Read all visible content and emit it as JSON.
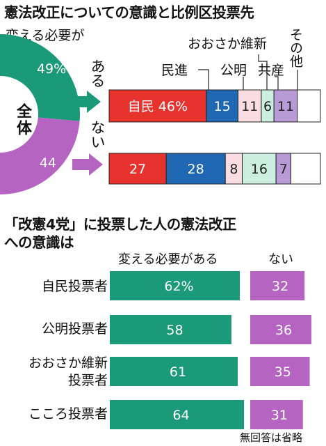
{
  "colors": {
    "green": "#1a9a78",
    "purple": "#b565c1",
    "ldp": "#e8322e",
    "cdp": "#1f66b3",
    "komeito": "#fadce3",
    "ishin": "#cbeee0",
    "kyosan": "#fbe6ea",
    "kyosan_bar": "#e9b8cc",
    "sdp": "#b89ad6",
    "other": "#ffffff"
  },
  "top": {
    "title": "憲法改正についての意識と比例区投票先",
    "need_change_label": "変える必要が",
    "aru": "ある",
    "nai": "ない",
    "all_label": "全体"
  },
  "chart_data": [
    {
      "type": "pie",
      "title": "全体",
      "slices": [
        {
          "label": "変える必要がある",
          "value": 49,
          "display": "49%",
          "color": "#1a9a78"
        },
        {
          "label": "変える必要がない",
          "value": 44,
          "display": "44",
          "color": "#b565c1"
        }
      ]
    },
    {
      "type": "bar",
      "stacked": true,
      "orientation": "horizontal",
      "categories": [
        "ある",
        "ない"
      ],
      "series": [
        {
          "name": "自民",
          "color": "#e8322e",
          "values": [
            46,
            27
          ],
          "labels": [
            "自民 46%",
            "27"
          ]
        },
        {
          "name": "民進",
          "color": "#1f66b3",
          "values": [
            15,
            28
          ],
          "labels": [
            "15",
            "28"
          ]
        },
        {
          "name": "公明",
          "color": "#fadce3",
          "values": [
            11,
            8
          ],
          "labels": [
            "11",
            "8"
          ]
        },
        {
          "name": "おおさか維新",
          "color": "#cbeee0",
          "values": [
            6,
            16
          ],
          "labels": [
            "6",
            "16"
          ]
        },
        {
          "name": "共産",
          "color": "#b89ad6",
          "values": [
            11,
            7
          ],
          "labels": [
            "11",
            "7"
          ]
        },
        {
          "name": "その他",
          "color": "#ffffff",
          "values": [
            11,
            14
          ],
          "labels": [
            "",
            ""
          ]
        }
      ],
      "legend_labels": {
        "minshin": "民進",
        "komei": "公明",
        "ishin": "おおさか維新",
        "kyosan": "共産",
        "other": "その他"
      }
    },
    {
      "type": "bar",
      "orientation": "horizontal",
      "title": "「改憲4党」に投票した人の憲法改正への意識は",
      "headers": [
        "変える必要がある",
        "ない"
      ],
      "categories": [
        "自民投票者",
        "公明投票者",
        "おおさか維新投票者",
        "こころ投票者"
      ],
      "series": [
        {
          "name": "変える必要がある",
          "color": "#1a9a78",
          "values": [
            62,
            58,
            61,
            64
          ],
          "labels": [
            "62%",
            "58",
            "61",
            "64"
          ]
        },
        {
          "name": "ない",
          "color": "#b565c1",
          "values": [
            32,
            36,
            35,
            31
          ],
          "labels": [
            "32",
            "36",
            "35",
            "31"
          ]
        }
      ]
    }
  ],
  "bottom": {
    "title_line1": "「改憲4党」に投票した人の憲法改正",
    "title_line2": "への意識は",
    "rows": [
      "自民投票者",
      "公明投票者",
      "おおさか維新",
      "投票者",
      "こころ投票者"
    ]
  },
  "footnote": "無回答は省略"
}
